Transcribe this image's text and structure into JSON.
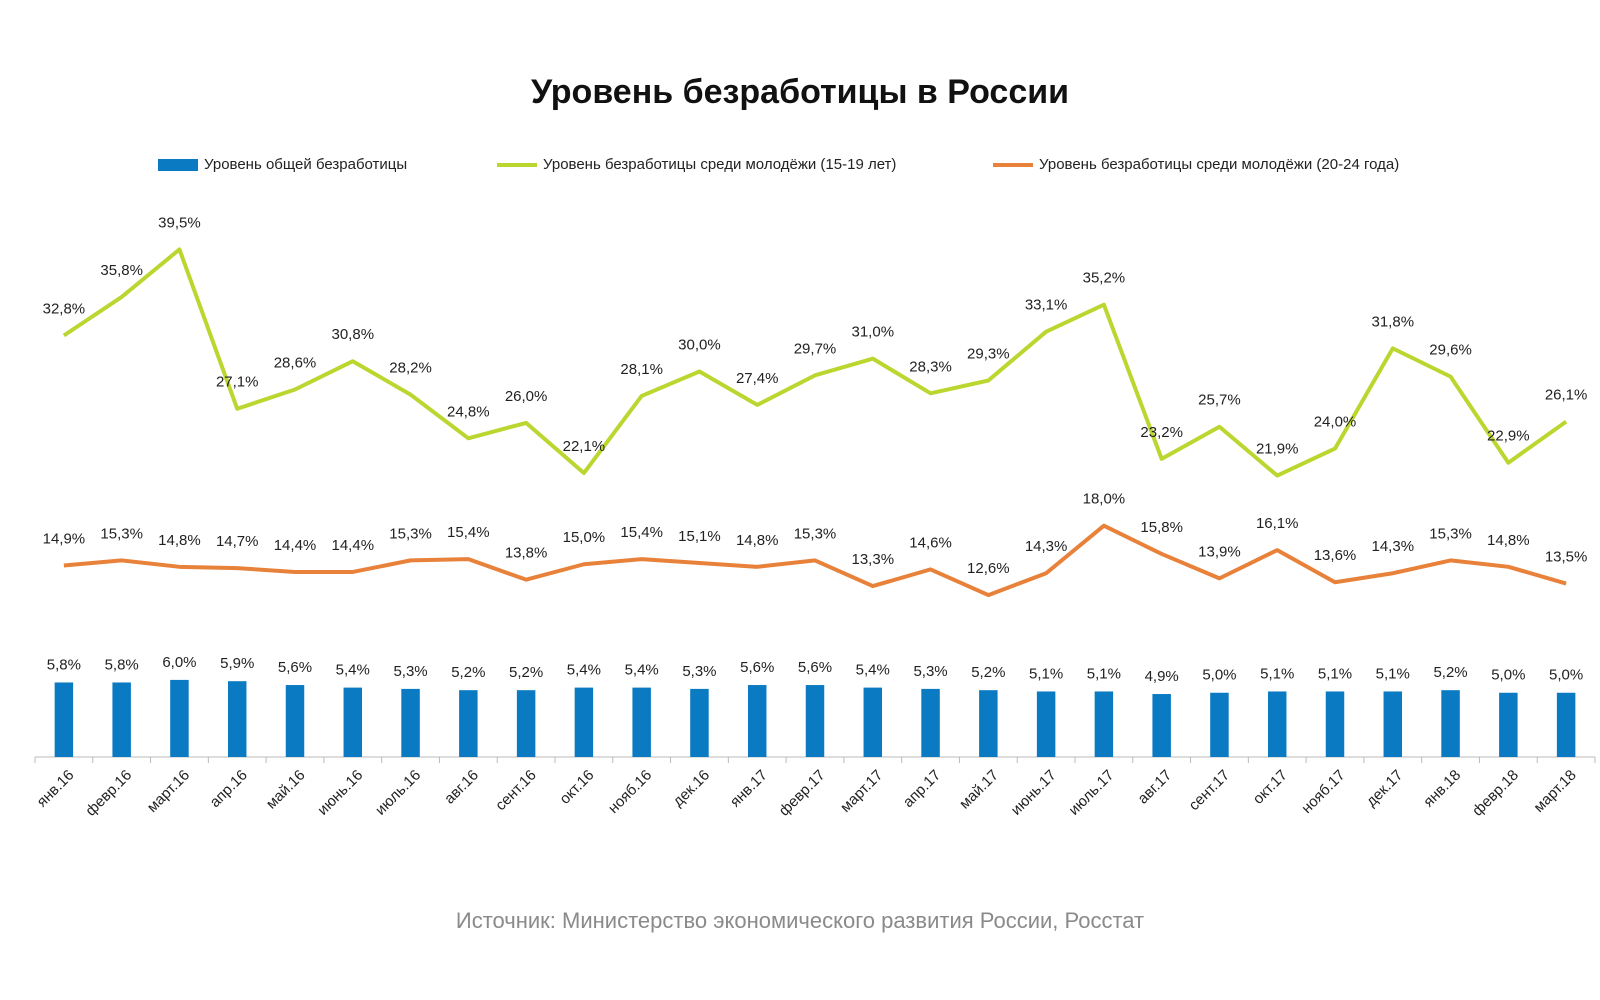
{
  "chart_data": {
    "type": "combo",
    "title": "Уровень безработицы в России",
    "source": "Источник: Министерство экономического развития России, Росстат",
    "categories": [
      "янв.16",
      "февр.16",
      "март.16",
      "апр.16",
      "май.16",
      "июнь.16",
      "июль.16",
      "авг.16",
      "сент.16",
      "окт.16",
      "нояб.16",
      "дек.16",
      "янв.17",
      "февр.17",
      "март.17",
      "апр.17",
      "май.17",
      "июнь.17",
      "июль.17",
      "авг.17",
      "сент.17",
      "окт.17",
      "нояб.17",
      "дек.17",
      "янв.18",
      "февр.18",
      "март.18"
    ],
    "ylim": [
      0,
      40
    ],
    "series": [
      {
        "name": "Уровень общей безработицы",
        "type": "bar",
        "color": "#0a7bc2",
        "values": [
          5.8,
          5.8,
          6.0,
          5.9,
          5.6,
          5.4,
          5.3,
          5.2,
          5.2,
          5.4,
          5.4,
          5.3,
          5.6,
          5.6,
          5.4,
          5.3,
          5.2,
          5.1,
          5.1,
          4.9,
          5.0,
          5.1,
          5.1,
          5.1,
          5.2,
          5.0,
          5.0
        ],
        "value_labels": [
          "5,8%",
          "5,8%",
          "6,0%",
          "5,9%",
          "5,6%",
          "5,4%",
          "5,3%",
          "5,2%",
          "5,2%",
          "5,4%",
          "5,4%",
          "5,3%",
          "5,6%",
          "5,6%",
          "5,4%",
          "5,3%",
          "5,2%",
          "5,1%",
          "5,1%",
          "4,9%",
          "5,0%",
          "5,1%",
          "5,1%",
          "5,1%",
          "5,2%",
          "5,0%",
          "5,0%"
        ]
      },
      {
        "name": "Уровень безработицы среди молодёжи (15-19 лет)",
        "type": "line",
        "color": "#bcd630",
        "values": [
          32.8,
          35.8,
          39.5,
          27.1,
          28.6,
          30.8,
          28.2,
          24.8,
          26.0,
          22.1,
          28.1,
          30.0,
          27.4,
          29.7,
          31.0,
          28.3,
          29.3,
          33.1,
          35.2,
          23.2,
          25.7,
          21.9,
          24.0,
          31.8,
          29.6,
          22.9,
          26.1
        ],
        "value_labels": [
          "32,8%",
          "35,8%",
          "39,5%",
          "27,1%",
          "28,6%",
          "30,8%",
          "28,2%",
          "24,8%",
          "26,0%",
          "22,1%",
          "28,1%",
          "30,0%",
          "27,4%",
          "29,7%",
          "31,0%",
          "28,3%",
          "29,3%",
          "33,1%",
          "35,2%",
          "23,2%",
          "25,7%",
          "21,9%",
          "24,0%",
          "31,8%",
          "29,6%",
          "22,9%",
          "26,1%"
        ]
      },
      {
        "name": "Уровень безработицы среди молодёжи (20-24 года)",
        "type": "line",
        "color": "#e8823a",
        "values": [
          14.9,
          15.3,
          14.8,
          14.7,
          14.4,
          14.4,
          15.3,
          15.4,
          13.8,
          15.0,
          15.4,
          15.1,
          14.8,
          15.3,
          13.3,
          14.6,
          12.6,
          14.3,
          18.0,
          15.8,
          13.9,
          16.1,
          13.6,
          14.3,
          15.3,
          14.8,
          13.5
        ],
        "value_labels": [
          "14,9%",
          "15,3%",
          "14,8%",
          "14,7%",
          "14,4%",
          "14,4%",
          "15,3%",
          "15,4%",
          "13,8%",
          "15,0%",
          "15,4%",
          "15,1%",
          "14,8%",
          "15,3%",
          "13,3%",
          "14,6%",
          "12,6%",
          "14,3%",
          "18,0%",
          "15,8%",
          "13,9%",
          "16,1%",
          "13,6%",
          "14,3%",
          "15,3%",
          "14,8%",
          "13,5%"
        ]
      }
    ]
  }
}
